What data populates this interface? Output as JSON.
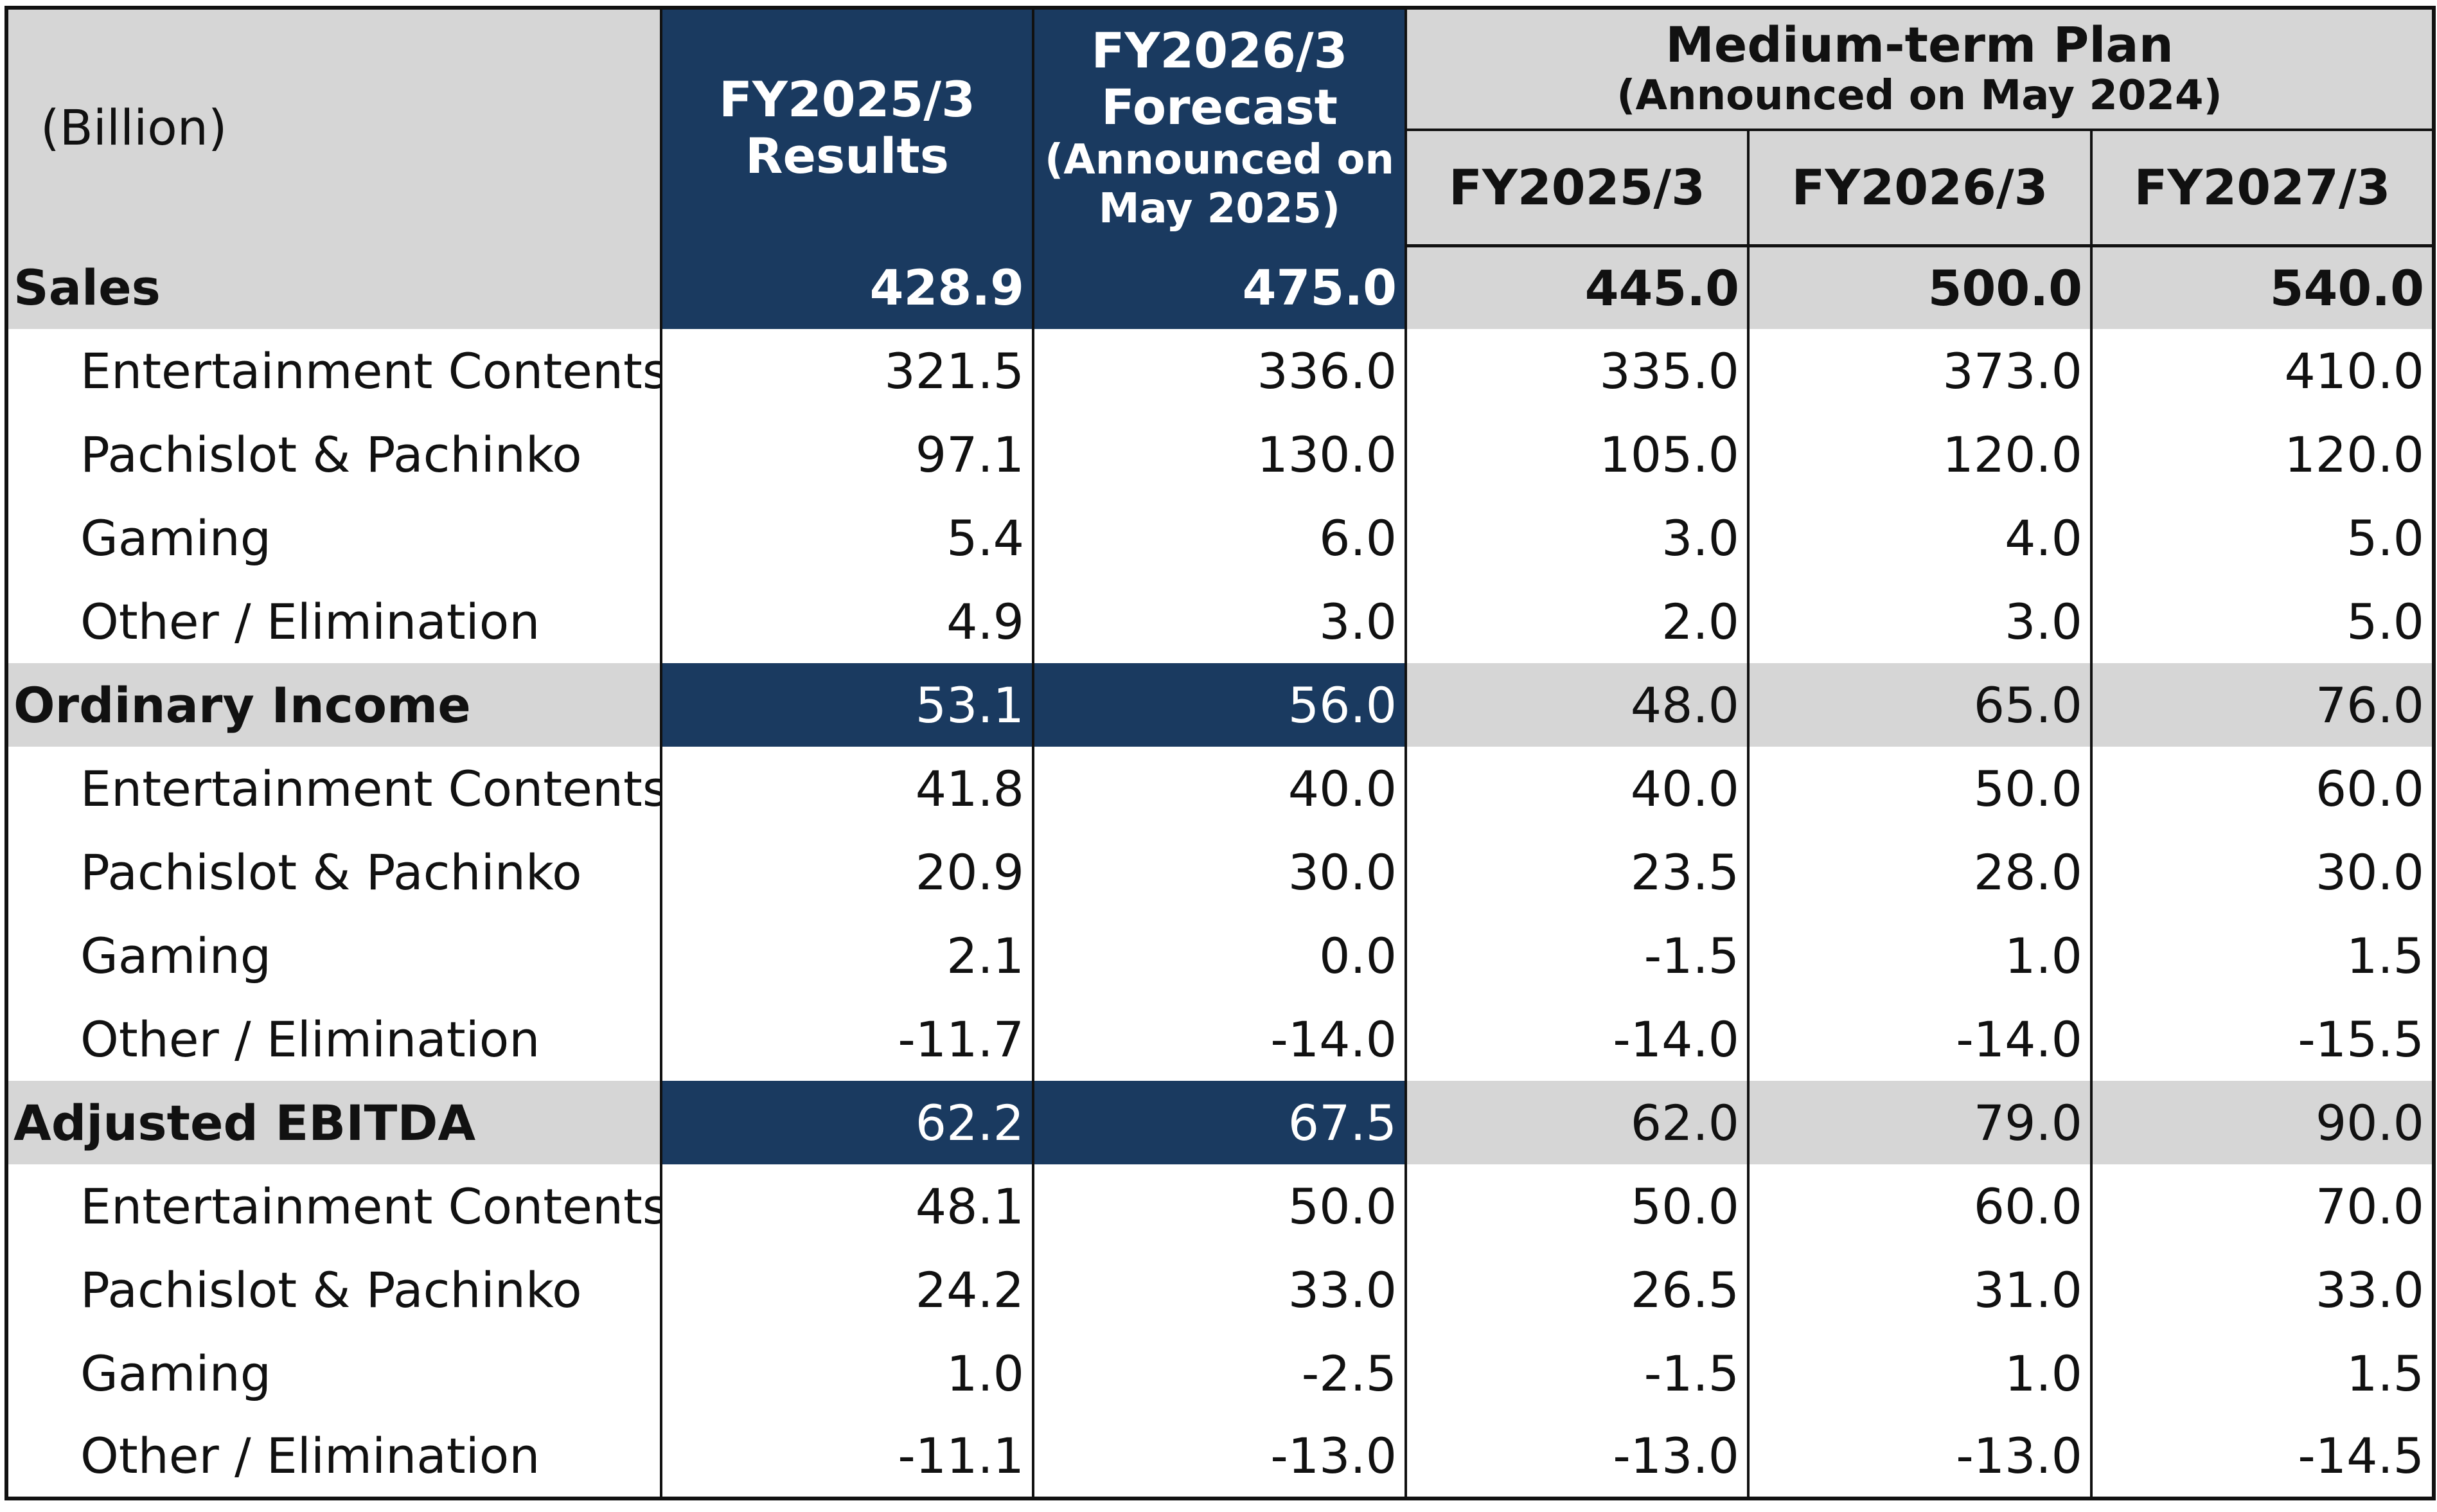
{
  "table": {
    "unit_label": "(Billion)",
    "columns": {
      "results": {
        "line1": "FY2025/3",
        "line2": "Results"
      },
      "forecast": {
        "line1": "FY2026/3",
        "line2": "Forecast",
        "line3": "(Announced on",
        "line4": "May 2025)"
      },
      "plan": {
        "title": "Medium-term Plan",
        "subtitle": "(Announced on May 2024)",
        "years": [
          "FY2025/3",
          "FY2026/3",
          "FY2027/3"
        ]
      }
    },
    "sections": [
      {
        "label": "Sales",
        "values": [
          "428.9",
          "475.0",
          "445.0",
          "500.0",
          "540.0"
        ],
        "rows": [
          {
            "label": "Entertainment Contents",
            "values": [
              "321.5",
              "336.0",
              "335.0",
              "373.0",
              "410.0"
            ]
          },
          {
            "label": "Pachislot & Pachinko",
            "values": [
              "97.1",
              "130.0",
              "105.0",
              "120.0",
              "120.0"
            ]
          },
          {
            "label": "Gaming",
            "values": [
              "5.4",
              "6.0",
              "3.0",
              "4.0",
              "5.0"
            ]
          },
          {
            "label": "Other / Elimination",
            "values": [
              "4.9",
              "3.0",
              "2.0",
              "3.0",
              "5.0"
            ]
          }
        ]
      },
      {
        "label": "Ordinary Income",
        "values": [
          "53.1",
          "56.0",
          "48.0",
          "65.0",
          "76.0"
        ],
        "rows": [
          {
            "label": "Entertainment Contents",
            "values": [
              "41.8",
              "40.0",
              "40.0",
              "50.0",
              "60.0"
            ]
          },
          {
            "label": "Pachislot & Pachinko",
            "values": [
              "20.9",
              "30.0",
              "23.5",
              "28.0",
              "30.0"
            ]
          },
          {
            "label": "Gaming",
            "values": [
              "2.1",
              "0.0",
              "-1.5",
              "1.0",
              "1.5"
            ]
          },
          {
            "label": "Other / Elimination",
            "values": [
              "-11.7",
              "-14.0",
              "-14.0",
              "-14.0",
              "-15.5"
            ]
          }
        ]
      },
      {
        "label": "Adjusted EBITDA",
        "values": [
          "62.2",
          "67.5",
          "62.0",
          "79.0",
          "90.0"
        ],
        "rows": [
          {
            "label": "Entertainment Contents",
            "values": [
              "48.1",
              "50.0",
              "50.0",
              "60.0",
              "70.0"
            ]
          },
          {
            "label": "Pachislot & Pachinko",
            "values": [
              "24.2",
              "33.0",
              "26.5",
              "31.0",
              "33.0"
            ]
          },
          {
            "label": "Gaming",
            "values": [
              "1.0",
              "-2.5",
              "-1.5",
              "1.0",
              "1.5"
            ]
          },
          {
            "label": "Other / Elimination",
            "values": [
              "-11.1",
              "-13.0",
              "-13.0",
              "-13.0",
              "-14.5"
            ]
          }
        ]
      }
    ],
    "colors": {
      "navy": "#1a3a60",
      "grey": "#d6d6d6",
      "border": "#111111"
    }
  }
}
